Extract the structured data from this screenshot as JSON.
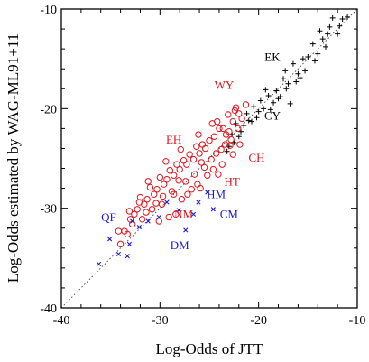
{
  "chart_data": {
    "type": "scatter",
    "title": "",
    "xlabel": "Log-Odds of JTT",
    "ylabel": "Log-Odds estimated by WAG-ML91+11",
    "xlim": [
      -40,
      -10
    ],
    "ylim": [
      -40,
      -10
    ],
    "xticks": [
      -40,
      -30,
      -20,
      -10
    ],
    "yticks": [
      -40,
      -30,
      -20,
      -10
    ],
    "grid": false,
    "reference_line": {
      "style": "dotted",
      "from": [
        -40,
        -40
      ],
      "to": [
        -10,
        -10
      ]
    },
    "series": [
      {
        "color": "#000000",
        "marker": "plus",
        "points": [
          [
            -11.0,
            -10.8
          ],
          [
            -11.5,
            -11.0
          ],
          [
            -11.8,
            -11.7
          ],
          [
            -12.0,
            -12.5
          ],
          [
            -12.5,
            -10.9
          ],
          [
            -13.0,
            -12.5
          ],
          [
            -13.5,
            -13.0
          ],
          [
            -13.8,
            -12.2
          ],
          [
            -14.0,
            -14.5
          ],
          [
            -14.5,
            -13.5
          ],
          [
            -15.0,
            -14.8
          ],
          [
            -15.5,
            -15.0
          ],
          [
            -15.3,
            -16.2
          ],
          [
            -16.0,
            -16.5
          ],
          [
            -16.5,
            -15.5
          ],
          [
            -16.2,
            -17.3
          ],
          [
            -17.0,
            -17.5
          ],
          [
            -17.2,
            -18.0
          ],
          [
            -17.5,
            -17.0
          ],
          [
            -17.8,
            -18.8
          ],
          [
            -18.0,
            -19.0
          ],
          [
            -18.2,
            -18.2
          ],
          [
            -18.5,
            -19.4
          ],
          [
            -19.0,
            -18.7
          ],
          [
            -19.5,
            -20.0
          ],
          [
            -19.8,
            -19.2
          ],
          [
            -20.0,
            -20.3
          ],
          [
            -20.2,
            -20.9
          ],
          [
            -20.5,
            -19.8
          ],
          [
            -21.0,
            -21.2
          ],
          [
            -21.2,
            -20.5
          ],
          [
            -21.5,
            -21.7
          ],
          [
            -21.8,
            -22.3
          ],
          [
            -22.0,
            -22.8
          ],
          [
            -22.3,
            -21.5
          ],
          [
            -22.5,
            -23.4
          ],
          [
            -22.7,
            -22.6
          ],
          [
            -23.0,
            -23.8
          ],
          [
            -23.2,
            -24.3
          ],
          [
            -16.8,
            -19.5
          ],
          [
            -17.3,
            -16.2
          ],
          [
            -18.8,
            -20.1
          ],
          [
            -19.3,
            -18.1
          ],
          [
            -20.7,
            -21.3
          ],
          [
            -13.2,
            -13.8
          ],
          [
            -14.3,
            -15.2
          ],
          [
            -15.8,
            -16.9
          ],
          [
            -12.8,
            -11.8
          ]
        ]
      },
      {
        "color": "#e0141e",
        "marker": "circle",
        "points": [
          [
            -21.3,
            -19.6
          ],
          [
            -22.0,
            -20.5
          ],
          [
            -22.4,
            -20.2
          ],
          [
            -22.6,
            -21.3
          ],
          [
            -23.0,
            -22.3
          ],
          [
            -23.3,
            -22.6
          ],
          [
            -23.6,
            -22.0
          ],
          [
            -24.0,
            -22.0
          ],
          [
            -24.2,
            -21.3
          ],
          [
            -24.5,
            -22.8
          ],
          [
            -25.0,
            -23.2
          ],
          [
            -25.4,
            -24.0
          ],
          [
            -25.7,
            -23.6
          ],
          [
            -26.0,
            -24.5
          ],
          [
            -26.3,
            -23.8
          ],
          [
            -26.6,
            -25.1
          ],
          [
            -27.0,
            -24.6
          ],
          [
            -27.3,
            -25.6
          ],
          [
            -27.6,
            -25.2
          ],
          [
            -28.0,
            -26.1
          ],
          [
            -28.3,
            -25.6
          ],
          [
            -28.6,
            -26.7
          ],
          [
            -29.0,
            -26.2
          ],
          [
            -29.3,
            -27.1
          ],
          [
            -29.6,
            -27.6
          ],
          [
            -30.0,
            -26.9
          ],
          [
            -30.3,
            -28.1
          ],
          [
            -30.6,
            -28.6
          ],
          [
            -31.0,
            -27.9
          ],
          [
            -31.3,
            -29.1
          ],
          [
            -31.6,
            -29.6
          ],
          [
            -32.0,
            -28.9
          ],
          [
            -32.3,
            -30.1
          ],
          [
            -32.6,
            -30.6
          ],
          [
            -33.0,
            -31.1
          ],
          [
            -33.3,
            -32.6
          ],
          [
            -33.6,
            -32.3
          ],
          [
            -34.0,
            -33.6
          ],
          [
            -34.2,
            -32.3
          ],
          [
            -25.2,
            -26.7
          ],
          [
            -25.5,
            -25.9
          ],
          [
            -26.2,
            -27.6
          ],
          [
            -26.8,
            -28.1
          ],
          [
            -27.2,
            -28.6
          ],
          [
            -27.8,
            -29.1
          ],
          [
            -28.4,
            -30.6
          ],
          [
            -24.6,
            -26.1
          ],
          [
            -23.8,
            -24.1
          ],
          [
            -23.4,
            -23.6
          ],
          [
            -22.8,
            -23.1
          ],
          [
            -24.8,
            -25.1
          ],
          [
            -26.5,
            -26.6
          ],
          [
            -28.8,
            -28.3
          ],
          [
            -29.8,
            -29.6
          ],
          [
            -30.8,
            -30.1
          ],
          [
            -31.8,
            -31.1
          ],
          [
            -32.8,
            -31.6
          ],
          [
            -29.1,
            -30.9
          ],
          [
            -30.1,
            -31.3
          ],
          [
            -22.1,
            -22.0
          ],
          [
            -21.7,
            -21.0
          ],
          [
            -22.9,
            -23.7
          ],
          [
            -24.3,
            -24.5
          ],
          [
            -25.8,
            -25.4
          ],
          [
            -27.4,
            -27.3
          ],
          [
            -28.1,
            -27.2
          ],
          [
            -30.4,
            -29.5
          ],
          [
            -31.4,
            -30.4
          ],
          [
            -26.1,
            -22.6
          ],
          [
            -27.9,
            -24.1
          ],
          [
            -29.4,
            -25.3
          ],
          [
            -31.2,
            -27.3
          ],
          [
            -23.1,
            -20.6
          ],
          [
            -24.7,
            -21.5
          ],
          [
            -22.3,
            -19.9
          ],
          [
            -32.1,
            -29.4
          ],
          [
            -33.1,
            -30.3
          ],
          [
            -25.9,
            -28.0
          ],
          [
            -24.1,
            -26.6
          ],
          [
            -23.7,
            -25.6
          ],
          [
            -22.6,
            -24.6
          ],
          [
            -21.9,
            -23.6
          ],
          [
            -28.6,
            -28.6
          ],
          [
            -29.7,
            -28.8
          ]
        ]
      },
      {
        "color": "#1c1cd8",
        "marker": "x",
        "points": [
          [
            -36.2,
            -35.6
          ],
          [
            -35.1,
            -33.1
          ],
          [
            -34.2,
            -34.6
          ],
          [
            -33.3,
            -34.8
          ],
          [
            -32.8,
            -31.3
          ],
          [
            -32.1,
            -31.9
          ],
          [
            -31.2,
            -31.3
          ],
          [
            -30.1,
            -30.9
          ],
          [
            -29.3,
            -29.4
          ],
          [
            -28.1,
            -30.2
          ],
          [
            -27.4,
            -32.2
          ],
          [
            -26.6,
            -30.6
          ],
          [
            -26.1,
            -29.4
          ],
          [
            -25.2,
            -28.4
          ],
          [
            -24.6,
            -30.1
          ],
          [
            -33.1,
            -33.6
          ]
        ]
      }
    ],
    "annotations": [
      {
        "text": "EK",
        "color": "#000000",
        "x": -18.6,
        "y": -15.2
      },
      {
        "text": "CY",
        "color": "#000000",
        "x": -18.6,
        "y": -21.1
      },
      {
        "text": "WY",
        "color": "#e0141e",
        "x": -23.5,
        "y": -18.0
      },
      {
        "text": "EH",
        "color": "#e0141e",
        "x": -28.6,
        "y": -23.5
      },
      {
        "text": "CH",
        "color": "#e0141e",
        "x": -20.2,
        "y": -25.3
      },
      {
        "text": "HT",
        "color": "#e0141e",
        "x": -22.7,
        "y": -27.7
      },
      {
        "text": "NM",
        "color": "#e0141e",
        "x": -27.6,
        "y": -31.0
      },
      {
        "text": "HM",
        "color": "#1c1cd8",
        "x": -24.3,
        "y": -29.0
      },
      {
        "text": "CM",
        "color": "#1c1cd8",
        "x": -23.0,
        "y": -31.0
      },
      {
        "text": "QF",
        "color": "#1c1cd8",
        "x": -35.2,
        "y": -31.3
      },
      {
        "text": "DM",
        "color": "#1c1cd8",
        "x": -28.0,
        "y": -34.1
      }
    ]
  }
}
